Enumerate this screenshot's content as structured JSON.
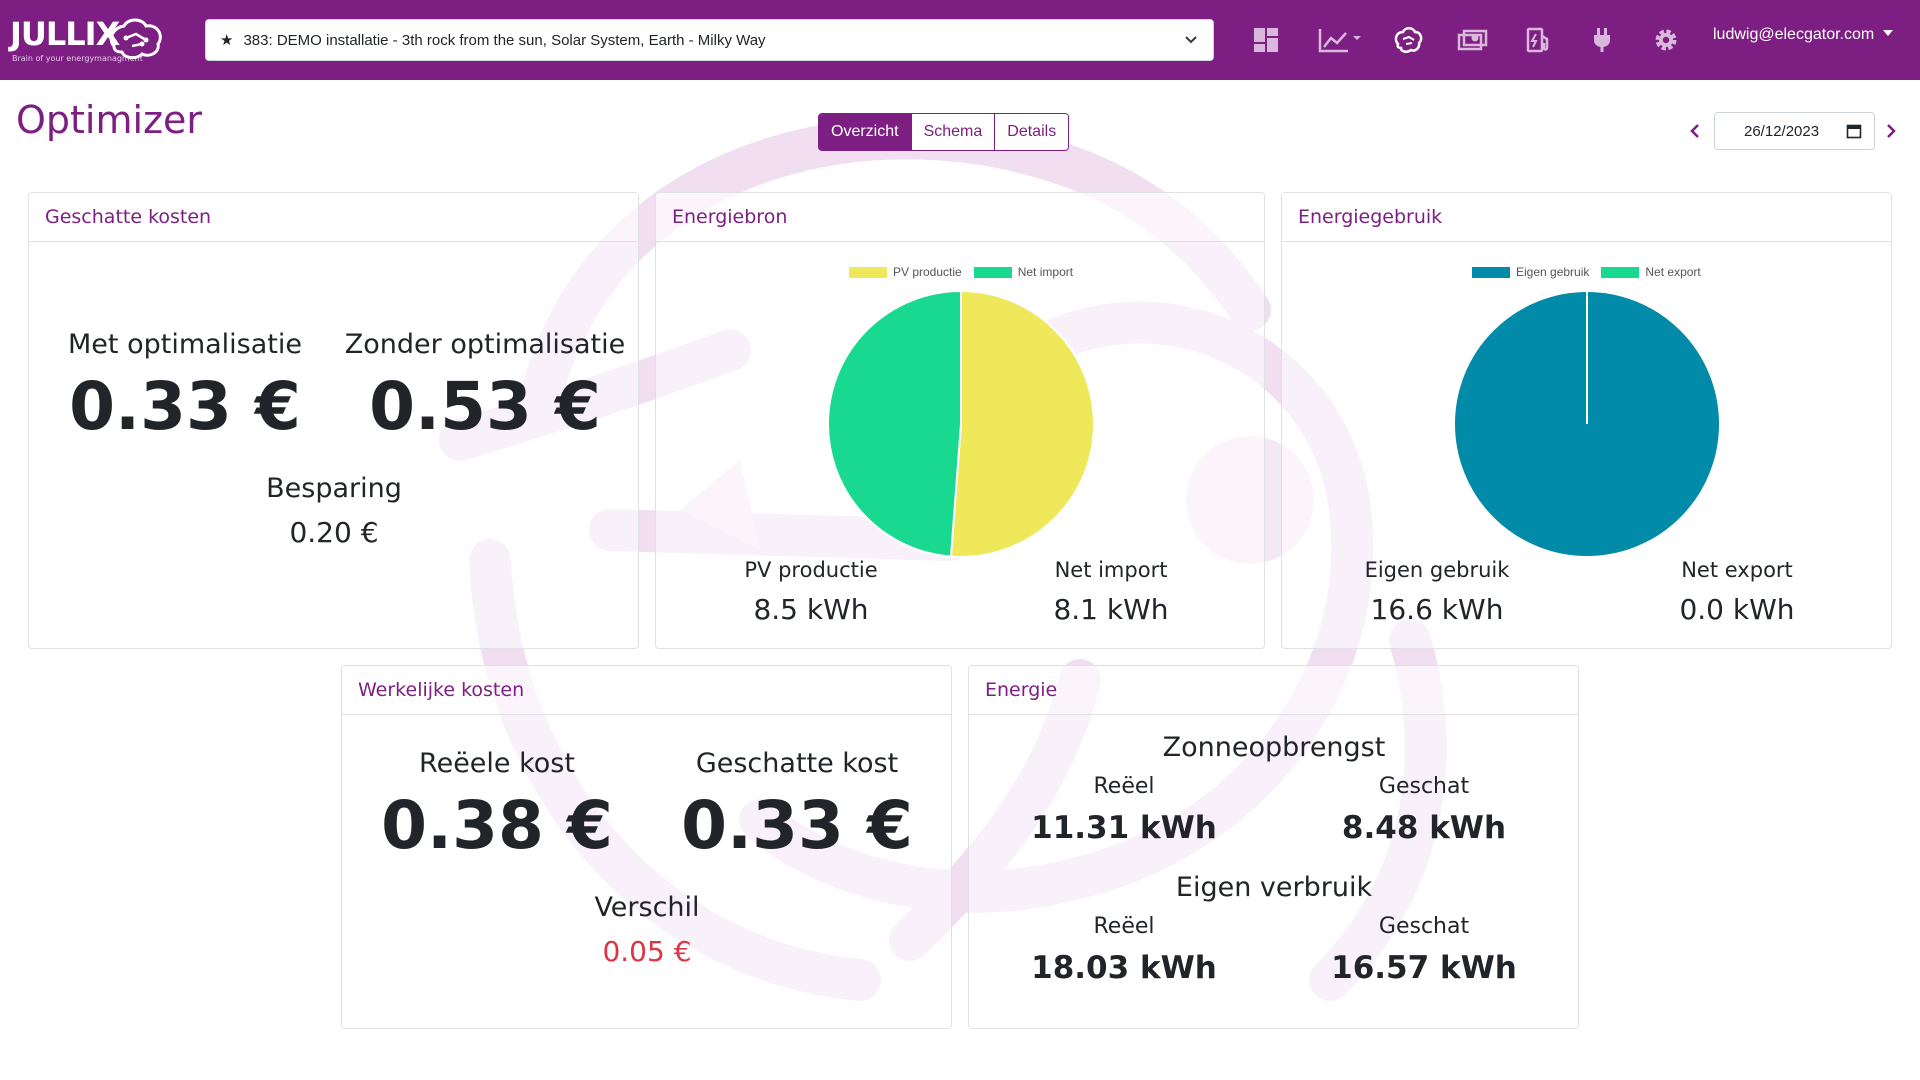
{
  "navbar": {
    "logo_text": "JULLIX",
    "logo_tagline": "Brain of your energymanagment",
    "installation": "383: DEMO installatie - 3th rock from the sun, Solar System, Earth - Milky Way",
    "user": "ludwig@elecgator.com",
    "icons": [
      "dashboard-icon",
      "chart-icon",
      "brain-icon",
      "money-icon",
      "fuel-icon",
      "plug-icon",
      "gear-icon"
    ]
  },
  "page": {
    "title": "Optimizer",
    "tabs": [
      {
        "label": "Overzicht",
        "active": true
      },
      {
        "label": "Schema",
        "active": false
      },
      {
        "label": "Details",
        "active": false
      }
    ],
    "date": "26/12/2023"
  },
  "estimated_costs": {
    "header": "Geschatte kosten",
    "with_label": "Met optimalisatie",
    "with_value": "0.33 €",
    "without_label": "Zonder optimalisatie",
    "without_value": "0.53 €",
    "saving_label": "Besparing",
    "saving_value": "0.20 €"
  },
  "energy_source": {
    "header": "Energiebron",
    "pv_label": "PV productie",
    "pv_value": "8.5 kWh",
    "import_label": "Net import",
    "import_value": "8.1 kWh"
  },
  "energy_usage": {
    "header": "Energiegebruik",
    "own_label": "Eigen gebruik",
    "own_value": "16.6 kWh",
    "export_label": "Net export",
    "export_value": "0.0 kWh"
  },
  "actual_costs": {
    "header": "Werkelijke kosten",
    "real_label": "Reëele kost",
    "real_value": "0.38 €",
    "estimated_label": "Geschatte kost",
    "estimated_value": "0.33 €",
    "diff_label": "Verschil",
    "diff_value": "0.05 €"
  },
  "energy": {
    "header": "Energie",
    "solar_title": "Zonneopbrengst",
    "solar_real_label": "Reëel",
    "solar_real_value": "11.31 kWh",
    "solar_est_label": "Geschat",
    "solar_est_value": "8.48 kWh",
    "own_title": "Eigen verbruik",
    "own_real_label": "Reëel",
    "own_real_value": "18.03 kWh",
    "own_est_label": "Geschat",
    "own_est_value": "16.57 kWh"
  },
  "chart_data": [
    {
      "type": "pie",
      "categories": [
        "PV productie",
        "Net import"
      ],
      "values": [
        8.5,
        8.1
      ],
      "colors": [
        "#eee85a",
        "#18d98f"
      ],
      "legend": "top"
    },
    {
      "type": "pie",
      "categories": [
        "Eigen gebruik",
        "Net export"
      ],
      "values": [
        16.6,
        0.0
      ],
      "colors": [
        "#028aa9",
        "#18d98f"
      ],
      "legend": "top"
    }
  ]
}
